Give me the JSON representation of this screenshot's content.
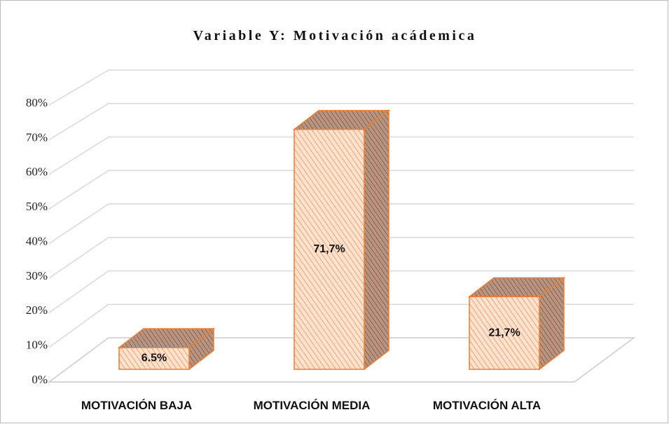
{
  "chart_data": {
    "type": "bar3d",
    "title": "Variable Y: Motivación acádemica",
    "categories": [
      "MOTIVACIÓN BAJA",
      "MOTIVACIÓN MEDIA",
      "MOTIVACIÓN ALTA"
    ],
    "values": [
      6.5,
      71.7,
      21.7
    ],
    "value_labels": [
      "6.5%",
      "71,7%",
      "21,7%"
    ],
    "color": "#ed7d31",
    "ylim": [
      0,
      80
    ],
    "yticks": [
      {
        "value": 0,
        "label": "0%"
      },
      {
        "value": 10,
        "label": "10%"
      },
      {
        "value": 20,
        "label": "20%"
      },
      {
        "value": 30,
        "label": "30%"
      },
      {
        "value": 40,
        "label": "40%"
      },
      {
        "value": 50,
        "label": "50%"
      },
      {
        "value": 60,
        "label": "60%"
      },
      {
        "value": 70,
        "label": "70%"
      },
      {
        "value": 80,
        "label": "80%"
      }
    ],
    "grid": true
  }
}
